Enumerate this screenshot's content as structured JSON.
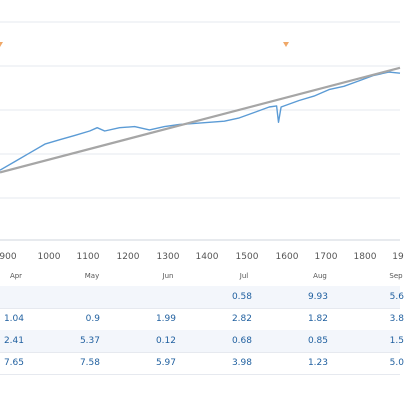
{
  "chart_data": {
    "type": "line",
    "x_ticks": [
      "900",
      "1000",
      "1100",
      "1200",
      "1300",
      "1400",
      "1500",
      "1600",
      "1700",
      "1800",
      "19"
    ],
    "xlim": [
      880,
      1950
    ],
    "ylim": [
      0,
      10
    ],
    "grid": true,
    "series": [
      {
        "color": "#5b9bd5",
        "points": [
          [
            880,
            3.2
          ],
          [
            920,
            3.6
          ],
          [
            960,
            4.0
          ],
          [
            1000,
            4.4
          ],
          [
            1040,
            4.6
          ],
          [
            1080,
            4.8
          ],
          [
            1120,
            5.0
          ],
          [
            1140,
            5.15
          ],
          [
            1160,
            5.0
          ],
          [
            1200,
            5.15
          ],
          [
            1240,
            5.2
          ],
          [
            1280,
            5.05
          ],
          [
            1320,
            5.2
          ],
          [
            1360,
            5.3
          ],
          [
            1400,
            5.35
          ],
          [
            1440,
            5.4
          ],
          [
            1480,
            5.45
          ],
          [
            1520,
            5.6
          ],
          [
            1560,
            5.85
          ],
          [
            1600,
            6.1
          ],
          [
            1620,
            6.15
          ],
          [
            1625,
            5.4
          ],
          [
            1632,
            6.1
          ],
          [
            1680,
            6.4
          ],
          [
            1720,
            6.6
          ],
          [
            1760,
            6.9
          ],
          [
            1800,
            7.05
          ],
          [
            1840,
            7.3
          ],
          [
            1880,
            7.55
          ],
          [
            1920,
            7.7
          ],
          [
            1950,
            7.65
          ]
        ]
      },
      {
        "color": "#a6a6a6",
        "points": [
          [
            880,
            3.1
          ],
          [
            1950,
            7.9
          ]
        ]
      }
    ]
  },
  "markers": [
    {
      "value": 880
    },
    {
      "value": 1645
    }
  ],
  "table": {
    "months": [
      "Apr",
      "May",
      "Jun",
      "Jul",
      "Aug",
      "Sep"
    ],
    "rows": [
      [
        "",
        "",
        "",
        "0.58",
        "9.93",
        "5.6"
      ],
      [
        "1.04",
        "0.9",
        "1.99",
        "2.82",
        "1.82",
        "3.8"
      ],
      [
        "2.41",
        "5.37",
        "0.12",
        "0.68",
        "0.85",
        "1.5"
      ],
      [
        "7.65",
        "7.58",
        "5.97",
        "3.98",
        "1.23",
        "5.0"
      ]
    ]
  }
}
